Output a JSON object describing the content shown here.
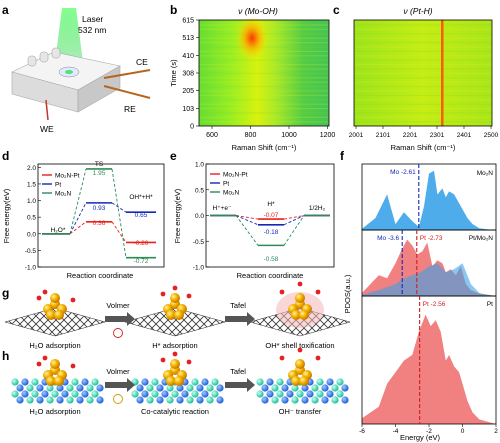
{
  "panel_labels": {
    "a": "a",
    "b": "b",
    "c": "c",
    "d": "d",
    "e": "e",
    "f": "f",
    "g": "g",
    "h": "h"
  },
  "panel_a": {
    "laser_label": "Laser",
    "laser_wavelength": "532 nm",
    "electrodes": {
      "ce": "CE",
      "re": "RE",
      "we": "WE"
    },
    "colors": {
      "laser": "#33dd55",
      "cell": "#e8e8e8"
    }
  },
  "panel_b": {
    "title": "ν (Mo-OH)",
    "xlabel": "Raman Shift (cm⁻¹)",
    "ylabel": "Time (s)",
    "x_ticks": [
      "600",
      "800",
      "1000",
      "1200"
    ],
    "y_ticks": [
      "0",
      "103",
      "205",
      "308",
      "410",
      "513",
      "615"
    ]
  },
  "panel_c": {
    "title": "ν (Pt-H)",
    "xlabel": "Raman Shift (cm⁻¹)",
    "x_ticks": [
      "2001",
      "2101",
      "2201",
      "2301",
      "2401",
      "2500"
    ]
  },
  "panel_d": {
    "xlabel": "Reaction coordinate",
    "ylabel": "Free energy(eV)",
    "legend": [
      "Mo₂N-Pt",
      "Pt",
      "Mo₂N"
    ],
    "y_ticks": [
      "-1.0",
      "-0.5",
      "0.0",
      "0.5",
      "1.0",
      "1.5",
      "2.0"
    ],
    "state_labels": {
      "s1": "H₂O*",
      "s2": "TS",
      "s3": "OH*+H*"
    },
    "value_labels": [
      "1.95",
      "0.93",
      "0.36",
      "0.65",
      "-0.26",
      "-0.72"
    ]
  },
  "panel_e": {
    "xlabel": "Reaction coordinate",
    "ylabel": "Free energy(eV)",
    "legend": [
      "Mo₂N-Pt",
      "Pt",
      "Mo₂N"
    ],
    "y_ticks": [
      "-1.0",
      "-0.5",
      "0.0",
      "0.5",
      "1.0"
    ],
    "state_labels": {
      "s1": "H⁺+e⁻",
      "s2": "H*",
      "s3": "1/2H₂"
    },
    "value_labels": [
      "-0.07",
      "-0.18",
      "-0.58"
    ]
  },
  "panel_f": {
    "xlabel": "Energy (eV)",
    "ylabel": "PDOS(a.u.)",
    "x_ticks": [
      "-6",
      "-4",
      "-2",
      "0",
      "2"
    ],
    "subpanels": [
      {
        "name": "Mo₂N",
        "annotations": [
          "Mo -2.61"
        ]
      },
      {
        "name": "Pt/Mo₂N",
        "annotations": [
          "Mo -3.6",
          "Pt -2.73"
        ]
      },
      {
        "name": "Pt",
        "annotations": [
          "Pt -2.56"
        ]
      }
    ]
  },
  "panel_g": {
    "steps": [
      "Volmer",
      "Tafel"
    ],
    "captions": [
      "H₂O adsorption",
      "H* adsorption",
      "OH* shell toxification"
    ]
  },
  "panel_h": {
    "steps": [
      "Volmer",
      "Tafel"
    ],
    "captions": [
      "H₂O adsorption",
      "Co-catalytic reaction",
      "OH⁻ transfer"
    ]
  },
  "chart_data": [
    {
      "id": "d",
      "type": "line",
      "title": "",
      "xlabel": "Reaction coordinate",
      "ylabel": "Free energy(eV)",
      "ylim": [
        -1.0,
        2.1
      ],
      "categories": [
        "H₂O*",
        "TS",
        "OH*+H*"
      ],
      "series": [
        {
          "name": "Mo₂N-Pt",
          "color": "#e8211b",
          "values": [
            0.0,
            0.36,
            -0.26
          ]
        },
        {
          "name": "Pt",
          "color": "#1428b8",
          "values": [
            0.0,
            0.93,
            0.65
          ]
        },
        {
          "name": "Mo₂N",
          "color": "#2e8b57",
          "values": [
            0.0,
            1.95,
            -0.72
          ]
        }
      ]
    },
    {
      "id": "e",
      "type": "line",
      "title": "",
      "xlabel": "Reaction coordinate",
      "ylabel": "Free energy(eV)",
      "ylim": [
        -1.0,
        1.0
      ],
      "categories": [
        "H⁺+e⁻",
        "H*",
        "1/2H₂"
      ],
      "series": [
        {
          "name": "Mo₂N-Pt",
          "color": "#e8211b",
          "values": [
            0.0,
            -0.07,
            0.0
          ]
        },
        {
          "name": "Pt",
          "color": "#1428b8",
          "values": [
            0.0,
            -0.18,
            0.0
          ]
        },
        {
          "name": "Mo₂N",
          "color": "#2e8b57",
          "values": [
            0.0,
            -0.58,
            0.0
          ]
        }
      ]
    },
    {
      "id": "f",
      "type": "area",
      "title": "",
      "xlabel": "Energy (eV)",
      "ylabel": "PDOS(a.u.)",
      "xlim": [
        -6,
        2
      ],
      "series": [
        {
          "name": "Mo₂N",
          "color": "#3ba3e8",
          "x": [
            -6,
            -5.2,
            -4.5,
            -4,
            -3.5,
            -3,
            -2.6,
            -2.3,
            -2,
            -1.7,
            -1.5,
            -1.2,
            -1,
            -0.8,
            -0.5,
            -0.2,
            0,
            0.3,
            0.6,
            1,
            1.5,
            2
          ],
          "values": [
            0.02,
            0.2,
            0.6,
            0.1,
            0.3,
            0.15,
            0.05,
            0.4,
            0.95,
            1.0,
            0.6,
            0.7,
            0.55,
            0.65,
            0.6,
            0.45,
            0.35,
            0.2,
            0.1,
            0.03,
            0.01,
            0
          ]
        },
        {
          "name": "Pt/Mo₂N Mo",
          "color": "#3ba3e8",
          "x": [
            -6,
            -5,
            -4.5,
            -4,
            -3.5,
            -3,
            -2.5,
            -2,
            -1.5,
            -1,
            -0.5,
            0,
            0.5,
            1,
            1.5,
            2
          ],
          "values": [
            0.02,
            0.1,
            0.15,
            0.2,
            0.3,
            0.35,
            0.4,
            0.5,
            0.55,
            0.4,
            0.45,
            0.55,
            0.2,
            0.05,
            0.02,
            0
          ]
        },
        {
          "name": "Pt/Mo₂N Pt",
          "color": "#ee6a6a",
          "x": [
            -6,
            -5.5,
            -5,
            -4.5,
            -4,
            -3.6,
            -3.3,
            -3,
            -2.7,
            -2.4,
            -2.1,
            -1.8,
            -1.5,
            -1.2,
            -1,
            -0.7,
            -0.4,
            -0.1,
            0.2,
            0.5,
            1,
            1.5,
            2
          ],
          "values": [
            0.05,
            0.2,
            0.35,
            0.3,
            0.55,
            0.8,
            0.95,
            0.85,
            0.7,
            0.75,
            0.9,
            0.5,
            0.6,
            0.55,
            0.4,
            0.45,
            0.35,
            0.5,
            0.2,
            0.1,
            0.04,
            0.02,
            0
          ]
        },
        {
          "name": "Pt",
          "color": "#ee6a6a",
          "x": [
            -6,
            -5.5,
            -5,
            -4.5,
            -4,
            -3.5,
            -3,
            -2.6,
            -2.2,
            -1.9,
            -1.6,
            -1.3,
            -1,
            -0.8,
            -0.5,
            -0.2,
            0,
            0.3,
            0.6,
            1,
            1.5,
            2
          ],
          "values": [
            0.05,
            0.1,
            0.15,
            0.35,
            0.45,
            0.55,
            0.6,
            0.8,
            0.95,
            0.85,
            0.9,
            0.8,
            0.55,
            0.6,
            0.5,
            0.45,
            0.35,
            0.2,
            0.1,
            0.04,
            0.02,
            0
          ]
        }
      ]
    }
  ]
}
